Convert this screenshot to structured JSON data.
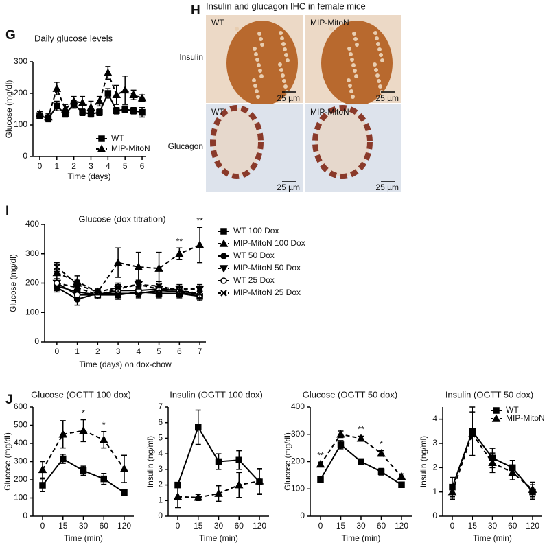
{
  "chart_data": [
    {
      "type": "line",
      "panel": "G",
      "title": "Daily glucose levels",
      "xlabel": "Time (days)",
      "ylabel": "Glucose (mg/dl)",
      "x": [
        0,
        0.5,
        1,
        1.5,
        2,
        2.5,
        3,
        3.5,
        4,
        4.5,
        5,
        5.5,
        6
      ],
      "xlim": [
        -0.4,
        6.2
      ],
      "xticks": [
        0,
        1,
        2,
        3,
        4,
        5,
        6
      ],
      "ylim": [
        0,
        300
      ],
      "yticks": [
        0,
        100,
        200,
        300
      ],
      "legend": "lower right",
      "series": [
        {
          "name": "WT",
          "color": "#000000",
          "marker": "square",
          "dash": false,
          "values": [
            130,
            120,
            160,
            135,
            165,
            140,
            135,
            140,
            200,
            145,
            150,
            145,
            140
          ],
          "errors": [
            8,
            10,
            15,
            10,
            12,
            10,
            10,
            10,
            15,
            10,
            10,
            10,
            15
          ]
        },
        {
          "name": "MIP-MitoN",
          "color": "#000000",
          "marker": "triangle",
          "dash": true,
          "values": [
            135,
            125,
            215,
            150,
            175,
            170,
            155,
            175,
            265,
            195,
            210,
            195,
            185
          ],
          "errors": [
            8,
            10,
            20,
            15,
            15,
            20,
            20,
            15,
            20,
            30,
            45,
            15,
            10
          ]
        }
      ]
    },
    {
      "type": "line",
      "panel": "I",
      "title": "Glucose (dox titration)",
      "xlabel": "Time (days) on dox-chow",
      "ylabel": "Glucose (mg/dl)",
      "x": [
        0,
        1,
        2,
        3,
        4,
        5,
        6,
        7
      ],
      "xlim": [
        -0.6,
        7.3
      ],
      "xticks": [
        0,
        1,
        2,
        3,
        4,
        5,
        6,
        7
      ],
      "ylim": [
        0,
        400
      ],
      "yticks": [
        0,
        100,
        200,
        300,
        400
      ],
      "legend": "right",
      "annotations": [
        {
          "text": "**",
          "x": 6
        },
        {
          "text": "**",
          "x": 7
        }
      ],
      "series": [
        {
          "name": "WT 100 Dox",
          "color": "#000000",
          "marker": "square",
          "dash": false,
          "values": [
            190,
            170,
            160,
            160,
            170,
            165,
            165,
            155
          ],
          "errors": [
            15,
            15,
            10,
            15,
            15,
            15,
            15,
            15
          ]
        },
        {
          "name": "MIP-MitoN 100 Dox",
          "color": "#000000",
          "marker": "triangle",
          "dash": true,
          "values": [
            235,
            205,
            170,
            270,
            255,
            250,
            300,
            330
          ],
          "errors": [
            30,
            20,
            10,
            50,
            50,
            55,
            20,
            60
          ]
        },
        {
          "name": "WT 50 Dox",
          "color": "#000000",
          "marker": "circle",
          "dash": false,
          "values": [
            185,
            145,
            165,
            165,
            165,
            175,
            170,
            155
          ],
          "errors": [
            15,
            20,
            10,
            15,
            15,
            15,
            15,
            15
          ]
        },
        {
          "name": "MIP-MitoN  50 Dox",
          "color": "#000000",
          "marker": "triangle-down",
          "dash": true,
          "values": [
            200,
            185,
            160,
            180,
            195,
            180,
            180,
            180
          ],
          "errors": [
            15,
            15,
            10,
            15,
            15,
            15,
            15,
            15
          ]
        },
        {
          "name": "WT 25 Dox",
          "color": "#000000",
          "marker": "circle-open",
          "dash": false,
          "values": [
            200,
            160,
            160,
            175,
            175,
            180,
            175,
            160
          ],
          "errors": [
            15,
            15,
            10,
            15,
            15,
            15,
            15,
            15
          ]
        },
        {
          "name": "MIP-MitoN  25 Dox",
          "color": "#000000",
          "marker": "x",
          "dash": true,
          "values": [
            255,
            195,
            170,
            185,
            195,
            190,
            175,
            165
          ],
          "errors": [
            15,
            15,
            10,
            15,
            15,
            15,
            15,
            15
          ]
        }
      ]
    },
    {
      "type": "line",
      "panel": "J",
      "title": "Glucose (OGTT 100 dox)",
      "xlabel": "Time (min)",
      "ylabel": "Glucose (mg/dl)",
      "categories": [
        "0",
        "15",
        "30",
        "60",
        "120"
      ],
      "ylim": [
        0,
        600
      ],
      "yticks": [
        0,
        100,
        200,
        300,
        400,
        500,
        600
      ],
      "annotations": [
        {
          "text": "*",
          "category": "30"
        },
        {
          "text": "*",
          "category": "60"
        }
      ],
      "series": [
        {
          "name": "WT",
          "color": "#000000",
          "marker": "square",
          "dash": false,
          "values": [
            170,
            315,
            250,
            205,
            130
          ],
          "errors": [
            35,
            25,
            25,
            30,
            15
          ]
        },
        {
          "name": "MIP-MitoN",
          "color": "#000000",
          "marker": "triangle",
          "dash": true,
          "values": [
            255,
            450,
            470,
            420,
            260
          ],
          "errors": [
            45,
            75,
            60,
            45,
            75
          ]
        }
      ]
    },
    {
      "type": "line",
      "title": "Insulin (OGTT 100 dox)",
      "xlabel": "Time (min)",
      "ylabel": "Insulin (ng/ml)",
      "categories": [
        "0",
        "15",
        "30",
        "60",
        "120"
      ],
      "ylim": [
        0,
        7
      ],
      "yticks": [
        0,
        1,
        2,
        3,
        4,
        5,
        6,
        7
      ],
      "series": [
        {
          "name": "WT",
          "color": "#000000",
          "marker": "square",
          "dash": false,
          "values": [
            2.0,
            5.7,
            3.5,
            3.6,
            2.2
          ],
          "errors": [
            0.1,
            1.1,
            0.5,
            0.6,
            0.8
          ]
        },
        {
          "name": "MIP-MitoN",
          "color": "#000000",
          "marker": "triangle",
          "dash": true,
          "values": [
            1.25,
            1.2,
            1.45,
            2.0,
            2.25
          ],
          "errors": [
            0.7,
            0.2,
            0.5,
            0.8,
            0.8
          ]
        }
      ]
    },
    {
      "type": "line",
      "title": "Glucose (OGTT 50 dox)",
      "xlabel": "Time (min)",
      "ylabel": "Glucose (mg/dl)",
      "categories": [
        "0",
        "15",
        "30",
        "60",
        "120"
      ],
      "ylim": [
        0,
        400
      ],
      "yticks": [
        0,
        100,
        200,
        300,
        400
      ],
      "annotations": [
        {
          "text": "**",
          "category": "0"
        },
        {
          "text": "**",
          "category": "30"
        },
        {
          "text": "*",
          "category": "60"
        }
      ],
      "series": [
        {
          "name": "WT",
          "color": "#000000",
          "marker": "square",
          "dash": false,
          "values": [
            135,
            262,
            200,
            163,
            115
          ],
          "errors": [
            8,
            15,
            10,
            12,
            8
          ]
        },
        {
          "name": "MIP-MitoN",
          "color": "#000000",
          "marker": "triangle",
          "dash": true,
          "values": [
            190,
            300,
            285,
            230,
            145
          ],
          "errors": [
            8,
            12,
            8,
            10,
            10
          ]
        }
      ]
    },
    {
      "type": "line",
      "title": "Insulin (OGTT 50 dox)",
      "xlabel": "Time (min)",
      "ylabel": "Insulin (ng/ml)",
      "categories": [
        "0",
        "15",
        "30",
        "60",
        "120"
      ],
      "ylim": [
        0,
        4.5
      ],
      "yticks": [
        0,
        1,
        2,
        3,
        4
      ],
      "legend": "upper right",
      "series": [
        {
          "name": "WT",
          "color": "#000000",
          "marker": "square",
          "dash": false,
          "values": [
            1.2,
            3.5,
            2.4,
            2.0,
            1.0
          ],
          "errors": [
            0.4,
            1.0,
            0.4,
            0.3,
            0.3
          ]
        },
        {
          "name": "MIP-MitoN",
          "color": "#000000",
          "marker": "triangle",
          "dash": true,
          "values": [
            1.0,
            3.4,
            2.2,
            1.8,
            1.1
          ],
          "errors": [
            0.3,
            0.9,
            0.4,
            0.3,
            0.3
          ]
        }
      ]
    }
  ],
  "images": {
    "panel": "H",
    "title": "Insulin and glucagon IHC in female mice",
    "rows": [
      {
        "label": "Insulin",
        "cells": [
          {
            "label": "WT",
            "scale": "25 µm"
          },
          {
            "label": "MIP-MitoN",
            "scale": "25 µm"
          }
        ]
      },
      {
        "label": "Glucagon",
        "cells": [
          {
            "label": "WT",
            "scale": "25 µm"
          },
          {
            "label": "MIP-MitoN",
            "scale": "25 µm"
          }
        ]
      }
    ]
  }
}
